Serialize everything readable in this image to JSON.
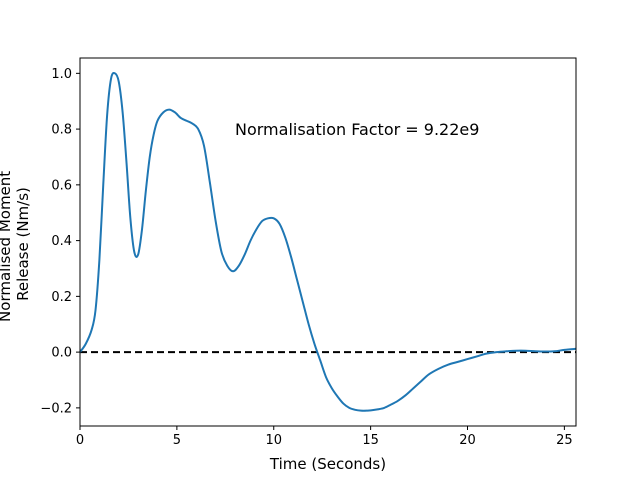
{
  "chart_data": {
    "type": "line",
    "title": "",
    "xlabel": "Time (Seconds)",
    "ylabel_lines": [
      "Normalised Moment",
      "Release (Nm/s)"
    ],
    "xlim": [
      0,
      25.6
    ],
    "ylim": [
      -0.265,
      1.055
    ],
    "x_ticks": [
      0,
      5,
      10,
      15,
      20,
      25
    ],
    "x_tick_labels": [
      "0",
      "5",
      "10",
      "15",
      "20",
      "25"
    ],
    "y_ticks": [
      -0.2,
      0.0,
      0.2,
      0.4,
      0.6,
      0.8,
      1.0
    ],
    "y_tick_labels": [
      "−0.2",
      "0.0",
      "0.2",
      "0.4",
      "0.6",
      "0.8",
      "1.0"
    ],
    "grid": false,
    "annotation": {
      "text": "Normalisation Factor = 9.22e9",
      "x": 8.0,
      "y": 0.8
    },
    "reference_line": {
      "y": 0.0,
      "style": "dashed",
      "color": "#000000"
    },
    "series": [
      {
        "color": "#1f77b4",
        "x": [
          0,
          0.3,
          0.6,
          0.8,
          1.0,
          1.2,
          1.4,
          1.6,
          1.8,
          2.0,
          2.2,
          2.4,
          2.6,
          2.8,
          3.0,
          3.2,
          3.4,
          3.6,
          3.8,
          4.0,
          4.3,
          4.6,
          4.9,
          5.2,
          5.5,
          5.8,
          6.1,
          6.4,
          6.7,
          7.0,
          7.3,
          7.6,
          7.9,
          8.2,
          8.5,
          8.8,
          9.1,
          9.4,
          9.7,
          10.0,
          10.3,
          10.6,
          10.9,
          11.2,
          11.5,
          11.8,
          12.1,
          12.4,
          12.7,
          13.0,
          13.3,
          13.6,
          13.9,
          14.2,
          14.5,
          14.8,
          15.1,
          15.4,
          15.7,
          16.0,
          16.4,
          16.8,
          17.2,
          17.6,
          18.0,
          18.5,
          19.0,
          19.5,
          20.0,
          20.5,
          21.0,
          21.5,
          22.0,
          22.5,
          23.0,
          23.5,
          24.0,
          24.5,
          25.0,
          25.6
        ],
        "values": [
          0.0,
          0.03,
          0.08,
          0.15,
          0.33,
          0.6,
          0.85,
          0.98,
          1.0,
          0.97,
          0.86,
          0.68,
          0.48,
          0.36,
          0.35,
          0.44,
          0.58,
          0.7,
          0.78,
          0.83,
          0.86,
          0.87,
          0.86,
          0.84,
          0.83,
          0.82,
          0.8,
          0.74,
          0.61,
          0.47,
          0.36,
          0.31,
          0.29,
          0.31,
          0.35,
          0.4,
          0.44,
          0.47,
          0.48,
          0.48,
          0.46,
          0.41,
          0.34,
          0.26,
          0.18,
          0.1,
          0.03,
          -0.03,
          -0.09,
          -0.13,
          -0.16,
          -0.185,
          -0.2,
          -0.207,
          -0.21,
          -0.21,
          -0.208,
          -0.205,
          -0.2,
          -0.19,
          -0.175,
          -0.155,
          -0.13,
          -0.105,
          -0.08,
          -0.06,
          -0.045,
          -0.035,
          -0.025,
          -0.015,
          -0.005,
          0.0,
          0.003,
          0.005,
          0.005,
          0.003,
          0.002,
          0.003,
          0.008,
          0.012
        ]
      }
    ]
  }
}
